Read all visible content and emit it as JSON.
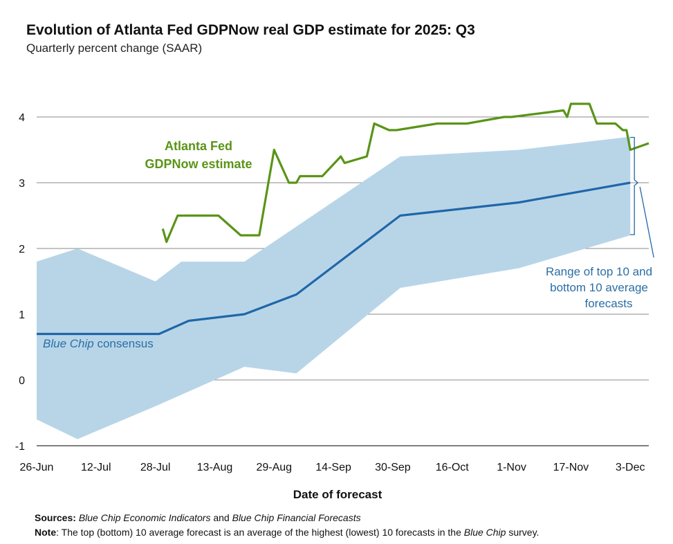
{
  "chart_data": {
    "type": "line",
    "title": "Evolution of Atlanta Fed GDPNow real GDP estimate for 2025: Q3",
    "subtitle": "Quarterly percent change (SAAR)",
    "xlabel": "Date of forecast",
    "ylabel": "",
    "ylim": [
      -1,
      4.5
    ],
    "yticks": [
      "-1",
      "0",
      "1",
      "2",
      "3",
      "4"
    ],
    "grid": true,
    "x_unit": "days since 26-Jun",
    "xlim": [
      0,
      165
    ],
    "xticks": [
      {
        "day": 0,
        "label": "26-Jun"
      },
      {
        "day": 16,
        "label": "12-Jul"
      },
      {
        "day": 32,
        "label": "28-Jul"
      },
      {
        "day": 48,
        "label": "13-Aug"
      },
      {
        "day": 64,
        "label": "29-Aug"
      },
      {
        "day": 80,
        "label": "14-Sep"
      },
      {
        "day": 96,
        "label": "30-Sep"
      },
      {
        "day": 112,
        "label": "16-Oct"
      },
      {
        "day": 128,
        "label": "1-Nov"
      },
      {
        "day": 144,
        "label": "17-Nov"
      },
      {
        "day": 160,
        "label": "3-Dec"
      }
    ],
    "series": [
      {
        "name": "Atlanta Fed GDPNow estimate",
        "color": "#5a9417",
        "points": [
          [
            34,
            2.3
          ],
          [
            35,
            2.1
          ],
          [
            38,
            2.5
          ],
          [
            49,
            2.5
          ],
          [
            55,
            2.2
          ],
          [
            60,
            2.2
          ],
          [
            64,
            3.5
          ],
          [
            68,
            3.0
          ],
          [
            70,
            3.0
          ],
          [
            71,
            3.1
          ],
          [
            77,
            3.1
          ],
          [
            82,
            3.4
          ],
          [
            83,
            3.3
          ],
          [
            89,
            3.4
          ],
          [
            91,
            3.9
          ],
          [
            95,
            3.8
          ],
          [
            97,
            3.8
          ],
          [
            108,
            3.9
          ],
          [
            116,
            3.9
          ],
          [
            126,
            4.0
          ],
          [
            128,
            4.0
          ],
          [
            142,
            4.1
          ],
          [
            143,
            4.0
          ],
          [
            144,
            4.2
          ],
          [
            149,
            4.2
          ],
          [
            151,
            3.9
          ],
          [
            156,
            3.9
          ],
          [
            158,
            3.8
          ],
          [
            159,
            3.8
          ],
          [
            160,
            3.5
          ],
          [
            165,
            3.6
          ]
        ]
      },
      {
        "name": "Blue Chip consensus",
        "color": "#1f67a8",
        "points": [
          [
            0,
            0.7
          ],
          [
            33,
            0.7
          ],
          [
            41,
            0.9
          ],
          [
            56,
            1.0
          ],
          [
            70,
            1.3
          ],
          [
            98,
            2.5
          ],
          [
            130,
            2.7
          ],
          [
            160,
            3.0
          ]
        ]
      }
    ],
    "band": {
      "name": "Range of top 10 and bottom 10 average forecasts",
      "color": "#b8d5e8",
      "upper": [
        [
          0,
          1.8
        ],
        [
          11,
          2.0
        ],
        [
          32,
          1.5
        ],
        [
          39,
          1.8
        ],
        [
          56,
          1.8
        ],
        [
          98,
          3.4
        ],
        [
          130,
          3.5
        ],
        [
          160,
          3.7
        ]
      ],
      "lower": [
        [
          0,
          -0.6
        ],
        [
          11,
          -0.9
        ],
        [
          32,
          -0.4
        ],
        [
          56,
          0.2
        ],
        [
          70,
          0.1
        ],
        [
          98,
          1.4
        ],
        [
          130,
          1.7
        ],
        [
          160,
          2.2
        ]
      ]
    },
    "annotations": {
      "green_line1": "Atlanta Fed",
      "green_line2": "GDPNow estimate",
      "blue_italic": "Blue Chip",
      "blue_rest": " consensus",
      "range_line1": "Range of top 10 and",
      "range_line2": "bottom 10 average",
      "range_line3": "forecasts"
    }
  },
  "footer": {
    "sources_label": "Sources:",
    "sources_italic1": "Blue Chip Economic Indicators",
    "sources_and": " and ",
    "sources_italic2": "Blue Chip Financial Forecasts",
    "note_label": "Note",
    "note_text": ": The top (bottom) 10 average forecast is an average of the highest (lowest) 10 forecasts in the ",
    "note_italic": "Blue Chip",
    "note_end": " survey."
  },
  "colors": {
    "green": "#5a9417",
    "blue": "#1f67a8",
    "band": "#b8d5e8",
    "grid": "#8a8a8a"
  }
}
